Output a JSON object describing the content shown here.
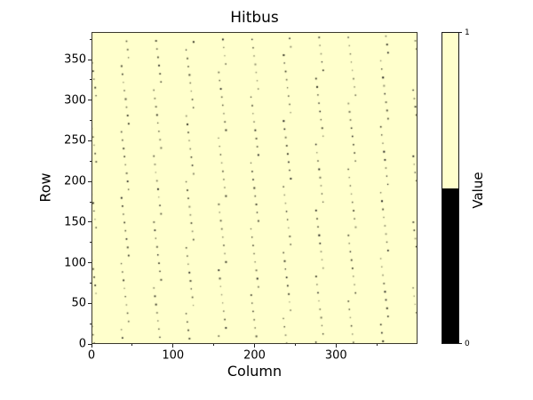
{
  "colors": {
    "figure_background": "#ffffff",
    "value_one_yellow": "#ffffcc",
    "value_zero_black": "#000000",
    "spine": "#3a382c",
    "tick": "#222222",
    "text": "#000000"
  },
  "chart_data": {
    "type": "heatmap",
    "title": "Hitbus",
    "xlabel": "Column",
    "ylabel": "Row",
    "xlim": [
      0,
      400
    ],
    "ylim": [
      0,
      384
    ],
    "x_ticks": [
      0,
      100,
      200,
      300
    ],
    "x_minor_ticks": [
      50,
      150,
      250,
      350
    ],
    "y_ticks": [
      0,
      50,
      100,
      150,
      200,
      250,
      300,
      350
    ],
    "y_minor_ticks": [
      25,
      75,
      125,
      175,
      225,
      275,
      325,
      375
    ],
    "grid": false,
    "background_value": 1,
    "colormap": [
      {
        "value": 0,
        "color": "#000000"
      },
      {
        "value": 1,
        "color": "#ffffcc"
      }
    ],
    "zero_pixel_pattern": {
      "description": "Nearly all pixels have value 1 (pale yellow). Sparse dark (value 0) pixels form vertical dotted chains every 40 columns; within each chain one dot appears about every 10 rows, drifting diagonally across ~8 columns before wrapping.",
      "chain_columns": [
        0,
        40,
        80,
        120,
        160,
        200,
        240,
        280,
        320,
        360,
        400
      ],
      "row_period": 10.2,
      "drift_span_columns": 8,
      "dot_colors": [
        "#141414",
        "#2e2e1f",
        "#50503a",
        "#6e6e52",
        "#8f8f6f"
      ]
    },
    "colorbar": {
      "label": "Value",
      "max_label": "1",
      "min_label": "0",
      "split_fraction": 0.5,
      "high_color": "#ffffcc",
      "low_color": "#000000",
      "legend_position": "right"
    }
  }
}
